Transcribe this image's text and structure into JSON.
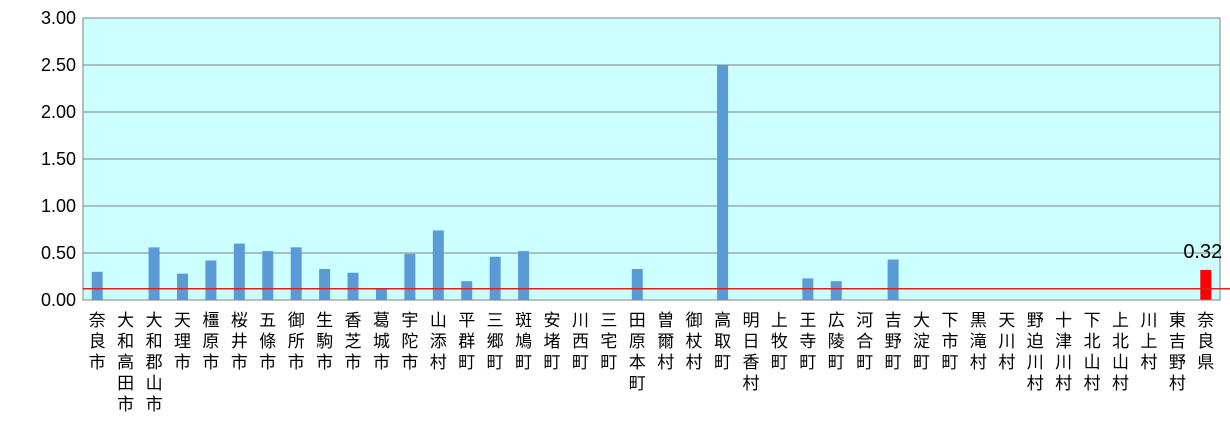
{
  "chart_data": {
    "type": "bar",
    "categories": [
      "奈良市",
      "大和高田市",
      "大和郡山市",
      "天理市",
      "橿原市",
      "桜井市",
      "五條市",
      "御所市",
      "生駒市",
      "香芝市",
      "葛城市",
      "宇陀市",
      "山添村",
      "平群町",
      "三郷町",
      "斑鳩町",
      "安堵町",
      "川西町",
      "三宅町",
      "田原本町",
      "曽爾村",
      "御杖村",
      "高取町",
      "明日香村",
      "上牧町",
      "王寺町",
      "広陵町",
      "河合町",
      "吉野町",
      "大淀町",
      "下市町",
      "黒滝村",
      "天川村",
      "野迫川村",
      "十津川村",
      "下北山村",
      "上北山村",
      "川上村",
      "東吉野村",
      "奈良県"
    ],
    "values": [
      0.3,
      0,
      0.56,
      0.28,
      0.42,
      0.6,
      0.52,
      0.56,
      0.33,
      0.29,
      0.12,
      0.49,
      0.74,
      0.2,
      0.46,
      0.52,
      0,
      0,
      0,
      0.33,
      0,
      0,
      2.5,
      0,
      0,
      0.23,
      0.2,
      0,
      0.43,
      0,
      0,
      0,
      0,
      0,
      0,
      0,
      0,
      0,
      0,
      0.32
    ],
    "yticks": [
      "0.00",
      "0.50",
      "1.00",
      "1.50",
      "2.00",
      "2.50",
      "3.00"
    ],
    "ylim": [
      0,
      3.0
    ],
    "reference_line": 0.12,
    "highlight_category": "奈良県",
    "highlight_label": "0.32",
    "grid": true,
    "colors": {
      "bar": "#5b9bd5",
      "highlight_bar": "#ff0000",
      "plot_background": "#ccffff",
      "gridline": "#808080",
      "reference_line": "#e02020"
    }
  }
}
